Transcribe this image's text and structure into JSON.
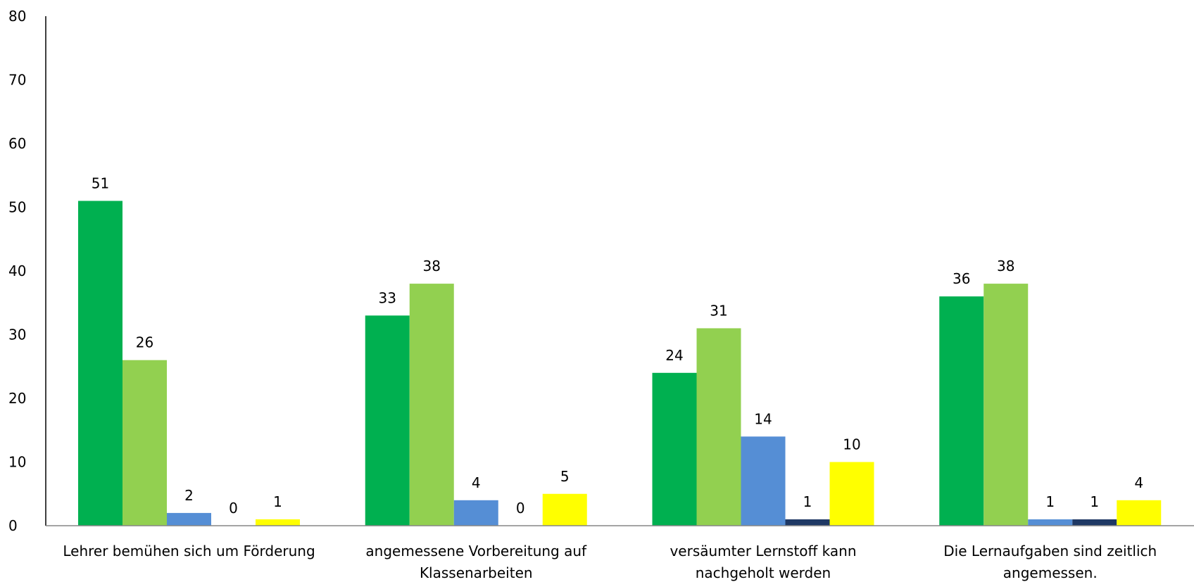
{
  "chart_data": {
    "type": "bar",
    "title": "",
    "xlabel": "",
    "ylabel": "",
    "ylim": [
      0,
      80
    ],
    "yticks": [
      "0",
      "10",
      "20",
      "30",
      "40",
      "50",
      "60",
      "70",
      "80"
    ],
    "grid": false,
    "legend": "none",
    "categories": [
      [
        "Lehrer bemühen sich um Förderung"
      ],
      [
        "angemessene Vorbereitung auf",
        "Klassenarbeiten"
      ],
      [
        "versäumter Lernstoff kann",
        "nachgeholt werden"
      ],
      [
        "Die Lernaufgaben sind zeitlich",
        "angemessen."
      ]
    ],
    "series": [
      {
        "color": "#00b050",
        "values": [
          51,
          33,
          24,
          36
        ]
      },
      {
        "color": "#92d050",
        "values": [
          26,
          38,
          31,
          38
        ]
      },
      {
        "color": "#558ed5",
        "values": [
          2,
          4,
          14,
          1
        ]
      },
      {
        "color": "#1f3864",
        "values": [
          0,
          0,
          1,
          1
        ]
      },
      {
        "color": "#ffff00",
        "values": [
          1,
          5,
          10,
          4
        ]
      }
    ]
  }
}
